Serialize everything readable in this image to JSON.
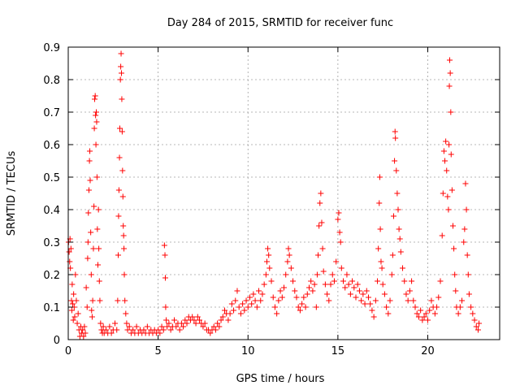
{
  "chart_data": {
    "type": "scatter",
    "title": "Day 284 of 2015, SRMTID for receiver func",
    "xlabel": "GPS time / hours",
    "ylabel": "SRMTID / TECUs",
    "xlim": [
      0,
      24
    ],
    "ylim": [
      0,
      0.9
    ],
    "xticks": [
      "0",
      "5",
      "10",
      "15",
      "20"
    ],
    "yticks": [
      "0",
      "0.1",
      "0.2",
      "0.3",
      "0.4",
      "0.5",
      "0.6",
      "0.7",
      "0.8",
      "0.9"
    ],
    "grid": true,
    "marker": "+",
    "color": "#ff0000",
    "series": [
      {
        "name": "SRMTID",
        "points": [
          [
            0.02,
            0.3
          ],
          [
            0.05,
            0.27
          ],
          [
            0.08,
            0.24
          ],
          [
            0.1,
            0.31
          ],
          [
            0.12,
            0.22
          ],
          [
            0.15,
            0.28
          ],
          [
            0.18,
            0.12
          ],
          [
            0.2,
            0.09
          ],
          [
            0.22,
            0.17
          ],
          [
            0.25,
            0.11
          ],
          [
            0.28,
            0.06
          ],
          [
            0.3,
            0.14
          ],
          [
            0.33,
            0.1
          ],
          [
            0.36,
            0.07
          ],
          [
            0.4,
            0.2
          ],
          [
            0.45,
            0.12
          ],
          [
            0.5,
            0.05
          ],
          [
            0.55,
            0.08
          ],
          [
            0.6,
            0.03
          ],
          [
            0.65,
            0.01
          ],
          [
            0.7,
            0.04
          ],
          [
            0.75,
            0.02
          ],
          [
            0.8,
            0.03
          ],
          [
            0.85,
            0.01
          ],
          [
            0.9,
            0.04
          ],
          [
            0.95,
            0.02
          ],
          [
            1.0,
            0.16
          ],
          [
            1.05,
            0.1
          ],
          [
            1.08,
            0.25
          ],
          [
            1.1,
            0.3
          ],
          [
            1.12,
            0.39
          ],
          [
            1.15,
            0.46
          ],
          [
            1.18,
            0.55
          ],
          [
            1.2,
            0.58
          ],
          [
            1.22,
            0.49
          ],
          [
            1.25,
            0.33
          ],
          [
            1.28,
            0.2
          ],
          [
            1.3,
            0.09
          ],
          [
            1.33,
            0.07
          ],
          [
            1.36,
            0.12
          ],
          [
            1.4,
            0.28
          ],
          [
            1.43,
            0.41
          ],
          [
            1.45,
            0.65
          ],
          [
            1.47,
            0.74
          ],
          [
            1.5,
            0.75
          ],
          [
            1.52,
            0.69
          ],
          [
            1.54,
            0.6
          ],
          [
            1.56,
            0.7
          ],
          [
            1.58,
            0.67
          ],
          [
            1.6,
            0.5
          ],
          [
            1.62,
            0.34
          ],
          [
            1.65,
            0.23
          ],
          [
            1.68,
            0.4
          ],
          [
            1.7,
            0.28
          ],
          [
            1.73,
            0.18
          ],
          [
            1.76,
            0.12
          ],
          [
            1.8,
            0.05
          ],
          [
            1.85,
            0.03
          ],
          [
            1.9,
            0.02
          ],
          [
            1.95,
            0.04
          ],
          [
            2.0,
            0.02
          ],
          [
            2.1,
            0.03
          ],
          [
            2.2,
            0.02
          ],
          [
            2.3,
            0.04
          ],
          [
            2.4,
            0.02
          ],
          [
            2.5,
            0.03
          ],
          [
            2.6,
            0.05
          ],
          [
            2.7,
            0.03
          ],
          [
            2.75,
            0.12
          ],
          [
            2.78,
            0.26
          ],
          [
            2.8,
            0.38
          ],
          [
            2.82,
            0.46
          ],
          [
            2.85,
            0.56
          ],
          [
            2.87,
            0.65
          ],
          [
            2.9,
            0.8
          ],
          [
            2.92,
            0.84
          ],
          [
            2.94,
            0.88
          ],
          [
            2.96,
            0.82
          ],
          [
            2.98,
            0.74
          ],
          [
            3.0,
            0.64
          ],
          [
            3.02,
            0.52
          ],
          [
            3.04,
            0.44
          ],
          [
            3.06,
            0.35
          ],
          [
            3.08,
            0.32
          ],
          [
            3.1,
            0.28
          ],
          [
            3.12,
            0.2
          ],
          [
            3.15,
            0.12
          ],
          [
            3.2,
            0.08
          ],
          [
            3.25,
            0.05
          ],
          [
            3.3,
            0.03
          ],
          [
            3.4,
            0.04
          ],
          [
            3.5,
            0.02
          ],
          [
            3.6,
            0.03
          ],
          [
            3.7,
            0.02
          ],
          [
            3.8,
            0.04
          ],
          [
            3.9,
            0.02
          ],
          [
            4.0,
            0.03
          ],
          [
            4.1,
            0.02
          ],
          [
            4.2,
            0.03
          ],
          [
            4.3,
            0.02
          ],
          [
            4.4,
            0.04
          ],
          [
            4.5,
            0.02
          ],
          [
            4.6,
            0.03
          ],
          [
            4.7,
            0.02
          ],
          [
            4.8,
            0.03
          ],
          [
            4.9,
            0.02
          ],
          [
            5.0,
            0.03
          ],
          [
            5.1,
            0.02
          ],
          [
            5.2,
            0.04
          ],
          [
            5.3,
            0.03
          ],
          [
            5.35,
            0.29
          ],
          [
            5.38,
            0.26
          ],
          [
            5.4,
            0.19
          ],
          [
            5.42,
            0.1
          ],
          [
            5.45,
            0.06
          ],
          [
            5.5,
            0.04
          ],
          [
            5.6,
            0.05
          ],
          [
            5.7,
            0.03
          ],
          [
            5.8,
            0.04
          ],
          [
            5.9,
            0.06
          ],
          [
            6.0,
            0.04
          ],
          [
            6.1,
            0.05
          ],
          [
            6.2,
            0.03
          ],
          [
            6.3,
            0.05
          ],
          [
            6.4,
            0.04
          ],
          [
            6.5,
            0.06
          ],
          [
            6.6,
            0.05
          ],
          [
            6.7,
            0.07
          ],
          [
            6.8,
            0.06
          ],
          [
            6.9,
            0.07
          ],
          [
            7.0,
            0.06
          ],
          [
            7.1,
            0.05
          ],
          [
            7.2,
            0.07
          ],
          [
            7.3,
            0.06
          ],
          [
            7.4,
            0.05
          ],
          [
            7.5,
            0.04
          ],
          [
            7.6,
            0.05
          ],
          [
            7.7,
            0.03
          ],
          [
            7.8,
            0.03
          ],
          [
            7.9,
            0.02
          ],
          [
            8.0,
            0.03
          ],
          [
            8.1,
            0.04
          ],
          [
            8.2,
            0.03
          ],
          [
            8.3,
            0.05
          ],
          [
            8.4,
            0.04
          ],
          [
            8.5,
            0.06
          ],
          [
            8.6,
            0.07
          ],
          [
            8.7,
            0.09
          ],
          [
            8.8,
            0.08
          ],
          [
            8.9,
            0.06
          ],
          [
            9.0,
            0.08
          ],
          [
            9.1,
            0.11
          ],
          [
            9.2,
            0.09
          ],
          [
            9.3,
            0.12
          ],
          [
            9.4,
            0.15
          ],
          [
            9.5,
            0.1
          ],
          [
            9.6,
            0.08
          ],
          [
            9.7,
            0.11
          ],
          [
            9.8,
            0.09
          ],
          [
            9.9,
            0.12
          ],
          [
            10.0,
            0.1
          ],
          [
            10.1,
            0.13
          ],
          [
            10.2,
            0.11
          ],
          [
            10.3,
            0.14
          ],
          [
            10.4,
            0.12
          ],
          [
            10.5,
            0.1
          ],
          [
            10.6,
            0.15
          ],
          [
            10.7,
            0.12
          ],
          [
            10.8,
            0.14
          ],
          [
            10.9,
            0.17
          ],
          [
            11.0,
            0.2
          ],
          [
            11.05,
            0.24
          ],
          [
            11.1,
            0.28
          ],
          [
            11.15,
            0.26
          ],
          [
            11.2,
            0.22
          ],
          [
            11.3,
            0.18
          ],
          [
            11.4,
            0.13
          ],
          [
            11.5,
            0.1
          ],
          [
            11.6,
            0.08
          ],
          [
            11.7,
            0.12
          ],
          [
            11.8,
            0.15
          ],
          [
            11.9,
            0.13
          ],
          [
            12.0,
            0.16
          ],
          [
            12.1,
            0.2
          ],
          [
            12.2,
            0.24
          ],
          [
            12.25,
            0.28
          ],
          [
            12.3,
            0.26
          ],
          [
            12.4,
            0.22
          ],
          [
            12.5,
            0.18
          ],
          [
            12.6,
            0.15
          ],
          [
            12.7,
            0.13
          ],
          [
            12.8,
            0.1
          ],
          [
            12.9,
            0.09
          ],
          [
            13.0,
            0.11
          ],
          [
            13.1,
            0.13
          ],
          [
            13.2,
            0.1
          ],
          [
            13.3,
            0.14
          ],
          [
            13.4,
            0.16
          ],
          [
            13.5,
            0.18
          ],
          [
            13.6,
            0.15
          ],
          [
            13.7,
            0.17
          ],
          [
            13.8,
            0.1
          ],
          [
            13.85,
            0.2
          ],
          [
            13.9,
            0.26
          ],
          [
            13.95,
            0.35
          ],
          [
            14.0,
            0.42
          ],
          [
            14.05,
            0.45
          ],
          [
            14.1,
            0.36
          ],
          [
            14.15,
            0.28
          ],
          [
            14.2,
            0.21
          ],
          [
            14.3,
            0.17
          ],
          [
            14.4,
            0.14
          ],
          [
            14.5,
            0.12
          ],
          [
            14.6,
            0.17
          ],
          [
            14.7,
            0.2
          ],
          [
            14.8,
            0.18
          ],
          [
            14.9,
            0.24
          ],
          [
            15.0,
            0.37
          ],
          [
            15.05,
            0.39
          ],
          [
            15.1,
            0.33
          ],
          [
            15.15,
            0.3
          ],
          [
            15.2,
            0.22
          ],
          [
            15.3,
            0.18
          ],
          [
            15.4,
            0.16
          ],
          [
            15.5,
            0.2
          ],
          [
            15.6,
            0.17
          ],
          [
            15.7,
            0.14
          ],
          [
            15.8,
            0.18
          ],
          [
            15.9,
            0.16
          ],
          [
            16.0,
            0.13
          ],
          [
            16.1,
            0.17
          ],
          [
            16.2,
            0.15
          ],
          [
            16.3,
            0.12
          ],
          [
            16.4,
            0.14
          ],
          [
            16.5,
            0.11
          ],
          [
            16.6,
            0.15
          ],
          [
            16.7,
            0.13
          ],
          [
            16.8,
            0.11
          ],
          [
            16.9,
            0.09
          ],
          [
            17.0,
            0.07
          ],
          [
            17.1,
            0.12
          ],
          [
            17.2,
            0.18
          ],
          [
            17.25,
            0.28
          ],
          [
            17.3,
            0.42
          ],
          [
            17.33,
            0.5
          ],
          [
            17.36,
            0.34
          ],
          [
            17.4,
            0.24
          ],
          [
            17.45,
            0.22
          ],
          [
            17.5,
            0.17
          ],
          [
            17.6,
            0.14
          ],
          [
            17.7,
            0.1
          ],
          [
            17.8,
            0.08
          ],
          [
            17.9,
            0.12
          ],
          [
            18.0,
            0.2
          ],
          [
            18.05,
            0.26
          ],
          [
            18.1,
            0.38
          ],
          [
            18.15,
            0.55
          ],
          [
            18.18,
            0.64
          ],
          [
            18.2,
            0.62
          ],
          [
            18.25,
            0.52
          ],
          [
            18.3,
            0.45
          ],
          [
            18.35,
            0.4
          ],
          [
            18.4,
            0.34
          ],
          [
            18.45,
            0.31
          ],
          [
            18.5,
            0.27
          ],
          [
            18.6,
            0.22
          ],
          [
            18.7,
            0.18
          ],
          [
            18.8,
            0.14
          ],
          [
            18.9,
            0.12
          ],
          [
            19.0,
            0.15
          ],
          [
            19.1,
            0.18
          ],
          [
            19.2,
            0.12
          ],
          [
            19.3,
            0.1
          ],
          [
            19.4,
            0.08
          ],
          [
            19.5,
            0.07
          ],
          [
            19.6,
            0.09
          ],
          [
            19.7,
            0.06
          ],
          [
            19.8,
            0.07
          ],
          [
            19.9,
            0.08
          ],
          [
            20.0,
            0.06
          ],
          [
            20.1,
            0.09
          ],
          [
            20.2,
            0.12
          ],
          [
            20.3,
            0.1
          ],
          [
            20.4,
            0.08
          ],
          [
            20.5,
            0.1
          ],
          [
            20.6,
            0.13
          ],
          [
            20.7,
            0.18
          ],
          [
            20.8,
            0.32
          ],
          [
            20.85,
            0.45
          ],
          [
            20.9,
            0.58
          ],
          [
            20.95,
            0.55
          ],
          [
            21.0,
            0.61
          ],
          [
            21.05,
            0.52
          ],
          [
            21.1,
            0.44
          ],
          [
            21.15,
            0.4
          ],
          [
            21.18,
            0.6
          ],
          [
            21.2,
            0.78
          ],
          [
            21.22,
            0.86
          ],
          [
            21.25,
            0.82
          ],
          [
            21.28,
            0.7
          ],
          [
            21.3,
            0.57
          ],
          [
            21.35,
            0.46
          ],
          [
            21.4,
            0.35
          ],
          [
            21.45,
            0.28
          ],
          [
            21.5,
            0.2
          ],
          [
            21.55,
            0.15
          ],
          [
            21.6,
            0.1
          ],
          [
            21.7,
            0.08
          ],
          [
            21.8,
            0.1
          ],
          [
            21.9,
            0.12
          ],
          [
            22.0,
            0.3
          ],
          [
            22.05,
            0.34
          ],
          [
            22.1,
            0.48
          ],
          [
            22.15,
            0.4
          ],
          [
            22.2,
            0.26
          ],
          [
            22.25,
            0.2
          ],
          [
            22.3,
            0.14
          ],
          [
            22.4,
            0.1
          ],
          [
            22.5,
            0.08
          ],
          [
            22.6,
            0.06
          ],
          [
            22.7,
            0.04
          ],
          [
            22.8,
            0.03
          ],
          [
            22.85,
            0.05
          ]
        ]
      }
    ]
  }
}
